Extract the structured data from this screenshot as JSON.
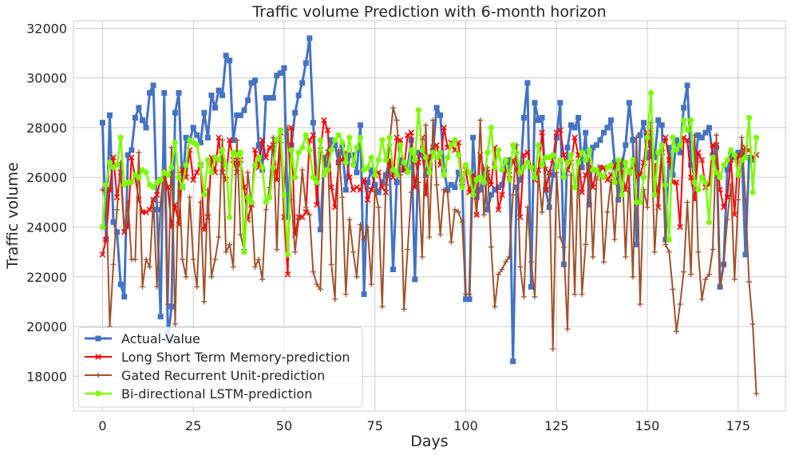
{
  "chart_data": {
    "type": "line",
    "title": "Traffic volume Prediction with 6-month horizon",
    "xlabel": "Days",
    "ylabel": "Traffic volume",
    "xlim": [
      -8,
      188
    ],
    "ylim": [
      16600,
      32300
    ],
    "xticks": [
      0,
      25,
      50,
      75,
      100,
      125,
      150,
      175
    ],
    "yticks": [
      18000,
      20000,
      22000,
      24000,
      26000,
      28000,
      30000,
      32000
    ],
    "grid": true,
    "legend_position": "lower-left",
    "series": [
      {
        "name": "Actual-Value",
        "color": "#4472c4",
        "marker": "square",
        "values": [
          28200,
          23500,
          28500,
          24200,
          23800,
          21700,
          21200,
          26900,
          27100,
          28400,
          28800,
          28300,
          28000,
          29400,
          29700,
          24700,
          20400,
          29400,
          19500,
          20800,
          28600,
          29400,
          25600,
          27600,
          27500,
          28000,
          27700,
          27400,
          28600,
          27600,
          29300,
          28800,
          29500,
          29300,
          30900,
          30700,
          27500,
          28500,
          28500,
          28700,
          29100,
          29800,
          29900,
          27300,
          26300,
          29200,
          29200,
          29200,
          30100,
          30200,
          30400,
          24400,
          27300,
          28600,
          29300,
          29800,
          30600,
          31600,
          28200,
          25800,
          23900,
          26800,
          26500,
          27500,
          27300,
          26600,
          27300,
          25500,
          26900,
          26900,
          26200,
          28100,
          21300,
          25800,
          26300,
          25700,
          25400,
          25800,
          26100,
          26600,
          22300,
          25800,
          26700,
          26300,
          26400,
          27500,
          21900,
          27000,
          26900,
          26100,
          26800,
          27100,
          28800,
          28500,
          26300,
          25500,
          25700,
          25600,
          26200,
          25900,
          21100,
          21100,
          27600,
          25200,
          25500,
          26300,
          24700,
          25300,
          25500,
          25600,
          25700,
          26600,
          26700,
          18600,
          25600,
          25900,
          28400,
          29800,
          21600,
          29000,
          28300,
          28400,
          25500,
          24800,
          26100,
          27600,
          29000,
          22500,
          27200,
          28100,
          28000,
          28400,
          26400,
          27800,
          24900,
          27200,
          27300,
          27500,
          27800,
          28000,
          28300,
          26600,
          25100,
          26500,
          27300,
          29000,
          27500,
          23300,
          27700,
          28200,
          26800,
          27300,
          26800,
          28300,
          28100,
          23500,
          27200,
          26100,
          27500,
          27000,
          28800,
          29700,
          26500,
          26300,
          27700,
          27600,
          27800,
          28000,
          26900,
          27200,
          21600,
          22500,
          26300,
          26900,
          26800,
          27000,
          26900,
          22900,
          26800,
          26700
        ]
      },
      {
        "name": "Long Short Term Memory-prediction",
        "color": "#ff0000",
        "marker": "x",
        "values": [
          22900,
          23500,
          25500,
          26800,
          25200,
          26200,
          23800,
          24000,
          26800,
          26000,
          25100,
          24600,
          24600,
          24700,
          25100,
          25300,
          25900,
          26100,
          25600,
          24000,
          24900,
          24100,
          26300,
          26000,
          27100,
          25900,
          26200,
          26500,
          23900,
          24400,
          26800,
          26200,
          27600,
          26200,
          25900,
          27500,
          26700,
          26200,
          26700,
          25600,
          24300,
          24900,
          27100,
          26400,
          27500,
          26800,
          27200,
          27300,
          25900,
          27800,
          24400,
          22100,
          28000,
          23700,
          24400,
          24400,
          24600,
          27500,
          27700,
          24900,
          27100,
          28300,
          27900,
          25600,
          24800,
          26600,
          26700,
          27000,
          26000,
          25500,
          25600,
          25500,
          25900,
          25100,
          25500,
          26100,
          26200,
          25600,
          25400,
          26700,
          26000,
          27600,
          27500,
          26300,
          27700,
          27800,
          25600,
          26600,
          27600,
          25300,
          26800,
          27200,
          27300,
          26500,
          28000,
          27200,
          27400,
          27100,
          27400,
          25800,
          26300,
          25400,
          26100,
          24500,
          26900,
          26300,
          26200,
          25700,
          27200,
          24700,
          25300,
          26300,
          26100,
          26700,
          26300,
          24400,
          26900,
          27000,
          26400,
          25900,
          26300,
          27800,
          25500,
          26200,
          26700,
          27800,
          27900,
          26900,
          26300,
          26600,
          27600,
          26900,
          25400,
          26100,
          26400,
          25600,
          26300,
          26400,
          26400,
          25900,
          26100,
          26500,
          26200,
          26200,
          25500,
          26300,
          26400,
          26000,
          26100,
          26600,
          27800,
          26800,
          26500,
          24800,
          27000,
          27600,
          26700,
          25800,
          25800,
          24000,
          27600,
          27500,
          26000,
          25100,
          27000,
          26700,
          25600,
          25700,
          27300,
          27300,
          25500,
          24800,
          25200,
          26700,
          24500,
          26900,
          26700,
          27200,
          27100,
          26800,
          26900
        ]
      },
      {
        "name": "Gated Recurrent Unit-prediction",
        "color": "#a0522d",
        "marker": "plus",
        "values": [
          25500,
          25400,
          20000,
          22500,
          24700,
          26600,
          23900,
          25000,
          22700,
          22700,
          27000,
          21600,
          22700,
          22400,
          25100,
          21600,
          25000,
          26300,
          20900,
          27200,
          20100,
          26200,
          22700,
          22000,
          25200,
          22700,
          21600,
          25000,
          21000,
          25500,
          22000,
          22700,
          23600,
          27500,
          23000,
          23300,
          22400,
          27500,
          23700,
          23100,
          26200,
          24900,
          22400,
          22700,
          21900,
          24700,
          25600,
          27600,
          23100,
          27400,
          25300,
          28000,
          25100,
          23000,
          24300,
          26300,
          24800,
          24500,
          22200,
          21700,
          21500,
          26600,
          27100,
          22500,
          21100,
          27100,
          25200,
          21300,
          24300,
          23000,
          22000,
          24100,
          23500,
          24000,
          21700,
          25500,
          24800,
          20800,
          25700,
          27300,
          28800,
          28300,
          26100,
          20700,
          23100,
          25400,
          26900,
          25800,
          22800,
          28100,
          23600,
          28300,
          25700,
          23700,
          25500,
          25400,
          23400,
          24700,
          24600,
          24200,
          21300,
          21300,
          26000,
          24500,
          28300,
          24500,
          26400,
          23200,
          20800,
          22100,
          22300,
          22600,
          22800,
          25300,
          27300,
          22400,
          21200,
          24800,
          22600,
          21200,
          26200,
          24600,
          26400,
          26100,
          19100,
          26200,
          23600,
          23200,
          19900,
          26100,
          21300,
          26700,
          21300,
          23300,
          26700,
          22800,
          25900,
          26400,
          22600,
          24600,
          25900,
          23500,
          26100,
          26700,
          22800,
          26100,
          22000,
          27600,
          20900,
          25500,
          24800,
          28200,
          23000,
          25600,
          27100,
          23300,
          23000,
          21500,
          19800,
          20900,
          22200,
          25000,
          22100,
          27700,
          23000,
          21100,
          21900,
          22100,
          23100,
          27700,
          21600,
          22500,
          24300,
          25700,
          21900,
          25100,
          27600,
          25100,
          21800,
          20100,
          17300
        ]
      },
      {
        "name": "Bi-directional LSTM-prediction",
        "color": "#7cfc00",
        "marker": "circle",
        "values": [
          24000,
          25700,
          26600,
          26400,
          26500,
          27600,
          25700,
          25800,
          25800,
          26100,
          26000,
          26300,
          26200,
          25700,
          25600,
          25800,
          25900,
          26200,
          26100,
          26400,
          27400,
          26000,
          25600,
          26500,
          27500,
          27400,
          27300,
          26500,
          25300,
          26700,
          26200,
          26800,
          26700,
          27100,
          26500,
          24400,
          27000,
          26900,
          27000,
          23000,
          25200,
          25000,
          26500,
          26800,
          26400,
          25000,
          25200,
          26400,
          27500,
          27900,
          25300,
          22900,
          27100,
          26000,
          27000,
          27200,
          27700,
          27100,
          26000,
          25800,
          27500,
          26100,
          26300,
          27100,
          27500,
          27700,
          27400,
          26600,
          27600,
          26500,
          27200,
          27600,
          26300,
          26400,
          26800,
          26100,
          26700,
          27500,
          26700,
          27600,
          26300,
          26100,
          27300,
          26600,
          26200,
          27100,
          26700,
          28700,
          27100,
          26800,
          26200,
          27000,
          26800,
          27000,
          26100,
          26800,
          27300,
          27500,
          26900,
          25600,
          26500,
          26200,
          25300,
          25900,
          26000,
          25800,
          27000,
          28000,
          26400,
          27100,
          26300,
          26700,
          25900,
          27300,
          27000,
          26200,
          26400,
          26600,
          26400,
          26000,
          27300,
          26500,
          26800,
          26800,
          26900,
          26400,
          26700,
          26000,
          26600,
          26900,
          25600,
          26600,
          27000,
          26700,
          27100,
          26300,
          26300,
          26100,
          26000,
          26400,
          26500,
          25800,
          26700,
          25300,
          26600,
          26200,
          26700,
          25000,
          25000,
          26000,
          27600,
          29400,
          25300,
          27000,
          27300,
          25700,
          23500,
          27600,
          27100,
          27300,
          28300,
          27900,
          28300,
          25800,
          25500,
          26000,
          25800,
          24200,
          26800,
          26200,
          26000,
          26500,
          26700,
          27100,
          26900,
          26100,
          26700,
          26800,
          28400,
          25400,
          27600
        ]
      }
    ]
  }
}
